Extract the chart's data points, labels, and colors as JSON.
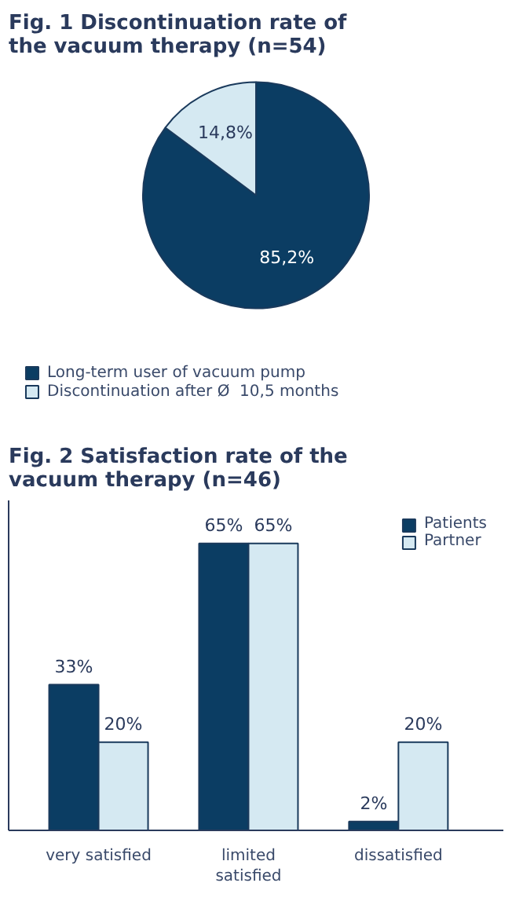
{
  "chart_data": [
    {
      "type": "pie",
      "title": "Fig. 1  Discontinuation rate of the vacuum therapy (n=54)",
      "categories": [
        "Long-term user of vacuum pump",
        "Discontinuation after Ø  10,5 months"
      ],
      "values": [
        85.2,
        14.8
      ],
      "colors": [
        "#0b3d63",
        "#d5e9f2"
      ],
      "value_labels": [
        "85,2%",
        "14,8%"
      ],
      "legend": "bottom"
    },
    {
      "type": "bar",
      "title": "Fig. 2  Satisfaction rate of the vacuum therapy (n=46)",
      "categories": [
        "very satisfied",
        "limited\nsatisfied",
        "dissatisfied"
      ],
      "series": [
        {
          "name": "Patients",
          "color": "#0b3d63",
          "values": [
            33,
            65,
            2
          ],
          "value_labels": [
            "33%",
            "65%",
            "2%"
          ]
        },
        {
          "name": "Partner",
          "color": "#d5e9f2",
          "values": [
            20,
            65,
            20
          ],
          "value_labels": [
            "20%",
            "65%",
            "20%"
          ]
        }
      ],
      "legend": "top right",
      "grid": false,
      "tick_labels": "x"
    }
  ]
}
